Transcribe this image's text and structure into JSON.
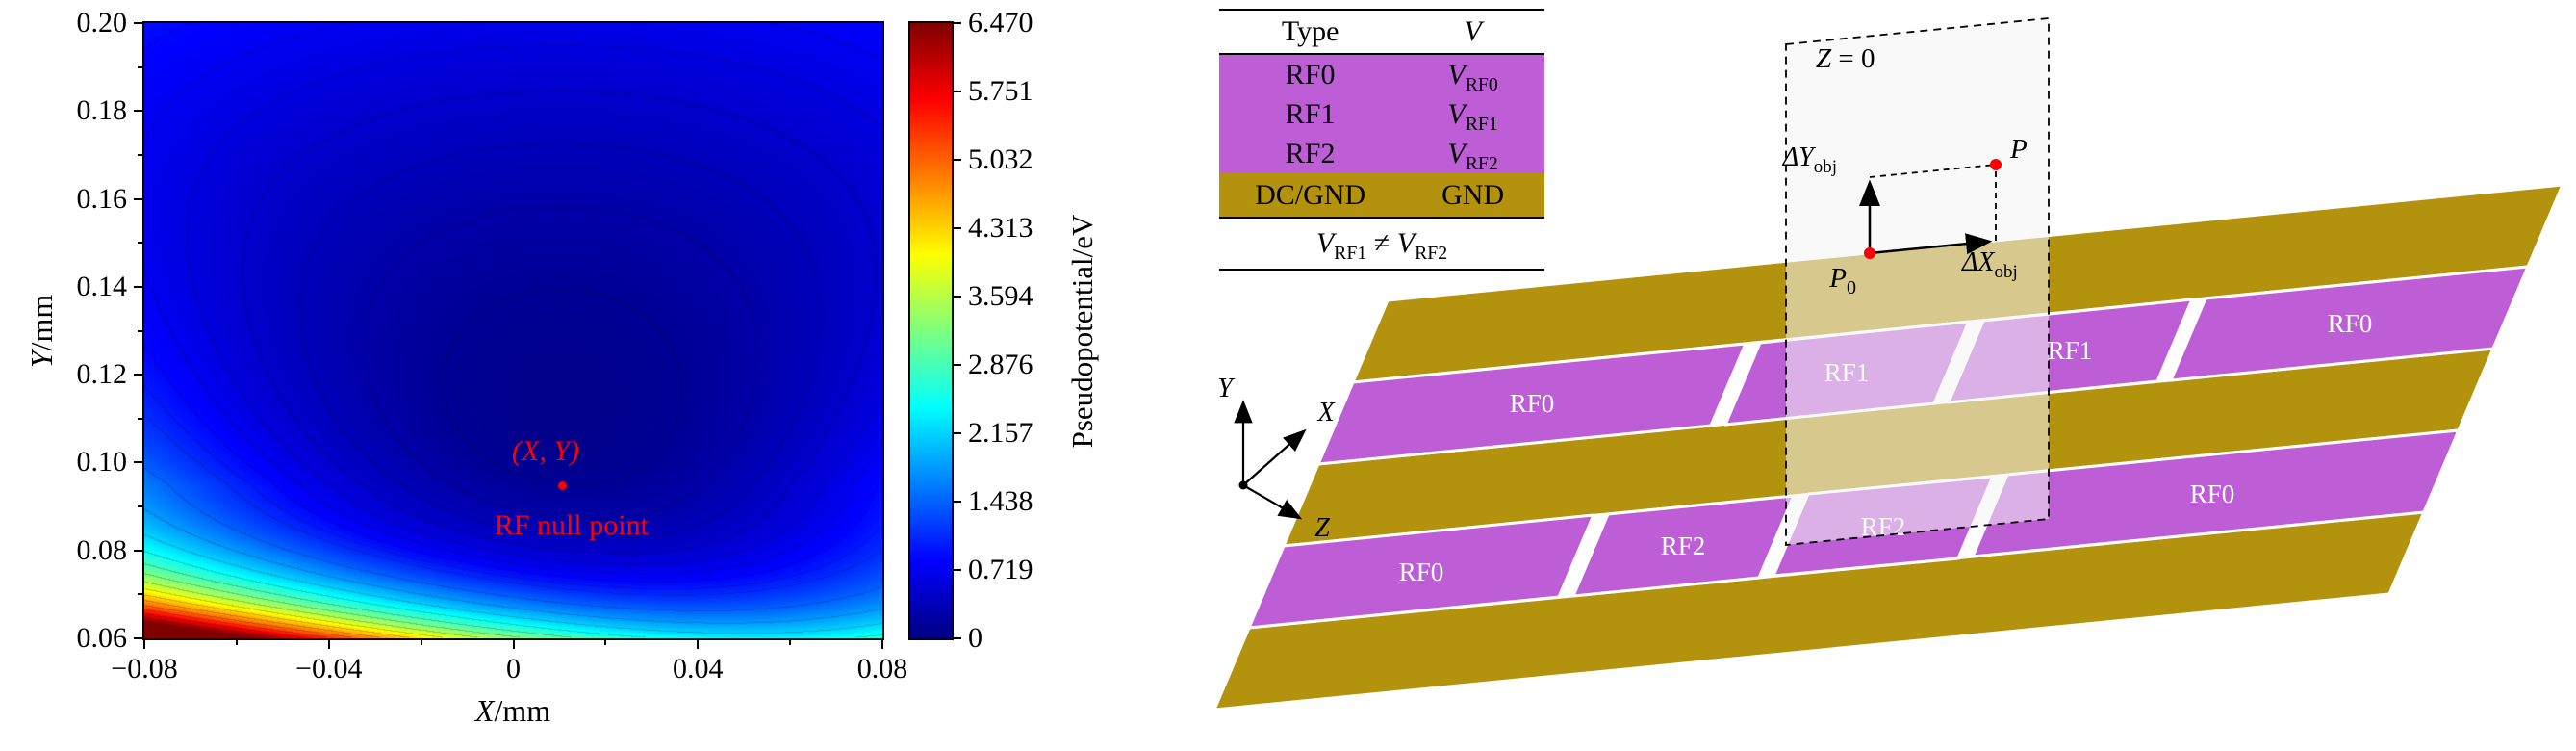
{
  "chart_data": {
    "type": "heatmap",
    "title": "",
    "xlabel": {
      "var": "X",
      "unit": "/mm"
    },
    "ylabel": {
      "var": "Y",
      "unit": "/mm"
    },
    "xlim": [
      -0.08,
      0.08
    ],
    "ylim": [
      0.06,
      0.2
    ],
    "x_ticks": [
      "−0.08",
      "−0.04",
      "0",
      "0.04",
      "0.08"
    ],
    "x_tick_values": [
      -0.08,
      -0.04,
      0,
      0.04,
      0.08
    ],
    "y_ticks": [
      "0.06",
      "0.08",
      "0.10",
      "0.12",
      "0.14",
      "0.16",
      "0.18",
      "0.20"
    ],
    "y_tick_values": [
      0.06,
      0.08,
      0.1,
      0.12,
      0.14,
      0.16,
      0.18,
      0.2
    ],
    "colorbar": {
      "label": "Pseudopotential/eV",
      "ticks": [
        "0",
        "0.719",
        "1.438",
        "2.157",
        "2.876",
        "3.594",
        "4.313",
        "5.032",
        "5.751",
        "6.470"
      ],
      "tick_values": [
        0,
        0.719,
        1.438,
        2.157,
        2.876,
        3.594,
        4.313,
        5.032,
        5.751,
        6.47
      ],
      "range": [
        0,
        6.47
      ],
      "colormap": [
        [
          0,
          0,
          0,
          131
        ],
        [
          0.125,
          0,
          0,
          255
        ],
        [
          0.375,
          0,
          255,
          255
        ],
        [
          0.625,
          255,
          255,
          0
        ],
        [
          0.875,
          255,
          0,
          0
        ],
        [
          1,
          128,
          0,
          0
        ]
      ]
    },
    "annotations": [
      {
        "text": "(X, Y)",
        "x": 0.007,
        "y": 0.1025,
        "italic": true
      },
      {
        "text": "RF null point",
        "x": 0.0126,
        "y": 0.0856,
        "italic": false
      }
    ],
    "marker": {
      "x": 0.0105,
      "y": 0.0948
    },
    "field_model": {
      "A": [
        3.2,
        -34,
        200
      ],
      "h": 0.011,
      "cx": 160,
      "x0": 0.01,
      "y0": 0.095,
      "gy": 0.06,
      "cy": 60,
      "clip": 6.47,
      "contour_fine_step": 0.12,
      "contour_fine_max": 1.08,
      "contour_step": 0.36
    }
  },
  "table": {
    "headers": {
      "type": "Type",
      "v": "V"
    },
    "rf_rows": [
      {
        "type": "RF0",
        "v_base": "V",
        "v_sub": "RF0"
      },
      {
        "type": "RF1",
        "v_base": "V",
        "v_sub": "RF1"
      },
      {
        "type": "RF2",
        "v_base": "V",
        "v_sub": "RF2"
      }
    ],
    "gnd_row": {
      "type": "DC/GND",
      "v": "GND"
    },
    "footer": {
      "lhs_base": "V",
      "lhs_sub": "RF1",
      "op": " ≠ ",
      "rhs_base": "V",
      "rhs_sub": "RF2"
    }
  },
  "diagram": {
    "plane_label": {
      "var": "Z",
      "eq": " = 0"
    },
    "axes": {
      "x": "X",
      "y": "Y",
      "z": "Z"
    },
    "rf_row_back": [
      "RF0",
      "RF1",
      "RF1",
      "RF0"
    ],
    "rf_row_front": [
      "RF0",
      "RF2",
      "RF2",
      "RF0"
    ],
    "points": {
      "p": "P",
      "p0_base": "P",
      "p0_sub": "0"
    },
    "offsets": {
      "dy_base": "ΔY",
      "dy_sub": "obj",
      "dx_base": "ΔX",
      "dx_sub": "obj"
    }
  },
  "colors": {
    "rf_purple": "#bd5ed6",
    "dc_gold": "#b3930e",
    "annotation_red": "#ff0000",
    "plane_fill": "rgba(244,244,246,0.55)"
  }
}
